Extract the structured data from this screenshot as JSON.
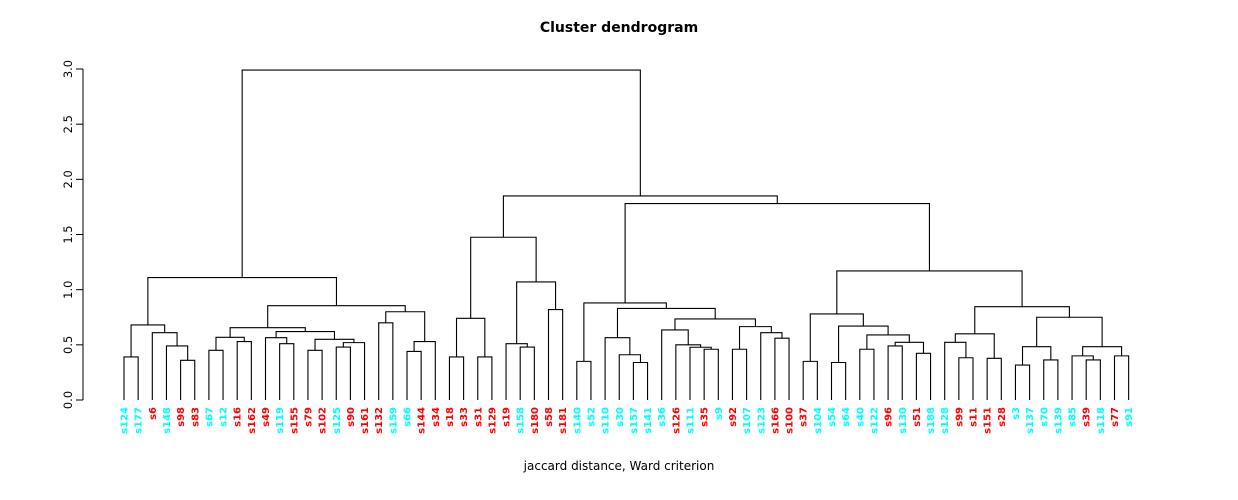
{
  "title": "Cluster dendrogram",
  "xlabel": "jaccard distance, Ward criterion",
  "colors": {
    "cluster_cyan": "#00FFFF",
    "cluster_red": "#FF0000",
    "line": "#000000",
    "background": "#FFFFFF"
  },
  "chart_data": {
    "type": "dendrogram",
    "title": "Cluster dendrogram",
    "xlabel": "jaccard distance, Ward criterion",
    "ylabel": "",
    "ylim": [
      0,
      3
    ],
    "yticks": [
      "0.0",
      "0.5",
      "1.0",
      "1.5",
      "2.0",
      "2.5",
      "3.0"
    ],
    "grid": false,
    "leaf_count": 72,
    "leaves": [
      [
        "s124",
        "c"
      ],
      [
        "s177",
        "c"
      ],
      [
        "s6",
        "r"
      ],
      [
        "s148",
        "c"
      ],
      [
        "s98",
        "r"
      ],
      [
        "s83",
        "r"
      ],
      [
        "s67",
        "c"
      ],
      [
        "s12",
        "c"
      ],
      [
        "s16",
        "r"
      ],
      [
        "s162",
        "r"
      ],
      [
        "s49",
        "r"
      ],
      [
        "s119",
        "c"
      ],
      [
        "s155",
        "r"
      ],
      [
        "s79",
        "r"
      ],
      [
        "s102",
        "r"
      ],
      [
        "s125",
        "c"
      ],
      [
        "s90",
        "r"
      ],
      [
        "s161",
        "r"
      ],
      [
        "s132",
        "r"
      ],
      [
        "s159",
        "c"
      ],
      [
        "s66",
        "c"
      ],
      [
        "s144",
        "r"
      ],
      [
        "s34",
        "r"
      ],
      [
        "s18",
        "r"
      ],
      [
        "s33",
        "r"
      ],
      [
        "s31",
        "r"
      ],
      [
        "s129",
        "r"
      ],
      [
        "s19",
        "r"
      ],
      [
        "s158",
        "c"
      ],
      [
        "s180",
        "r"
      ],
      [
        "s58",
        "r"
      ],
      [
        "s181",
        "r"
      ],
      [
        "s140",
        "c"
      ],
      [
        "s52",
        "c"
      ],
      [
        "s110",
        "c"
      ],
      [
        "s30",
        "c"
      ],
      [
        "s157",
        "c"
      ],
      [
        "s141",
        "c"
      ],
      [
        "s36",
        "c"
      ],
      [
        "s126",
        "r"
      ],
      [
        "s111",
        "c"
      ],
      [
        "s35",
        "r"
      ],
      [
        "s9",
        "c"
      ],
      [
        "s92",
        "r"
      ],
      [
        "s107",
        "c"
      ],
      [
        "s123",
        "c"
      ],
      [
        "s166",
        "r"
      ],
      [
        "s100",
        "r"
      ],
      [
        "s37",
        "r"
      ],
      [
        "s104",
        "c"
      ],
      [
        "s54",
        "c"
      ],
      [
        "s64",
        "c"
      ],
      [
        "s40",
        "c"
      ],
      [
        "s122",
        "c"
      ],
      [
        "s96",
        "r"
      ],
      [
        "s130",
        "c"
      ],
      [
        "s51",
        "r"
      ],
      [
        "s188",
        "c"
      ],
      [
        "s128",
        "c"
      ],
      [
        "s99",
        "r"
      ],
      [
        "s11",
        "r"
      ],
      [
        "s151",
        "r"
      ],
      [
        "s28",
        "r"
      ],
      [
        "s3",
        "c"
      ],
      [
        "s137",
        "c"
      ],
      [
        "s70",
        "c"
      ],
      [
        "s139",
        "c"
      ],
      [
        "s85",
        "c"
      ],
      [
        "s39",
        "r"
      ],
      [
        "s118",
        "c"
      ],
      [
        "s77",
        "r"
      ],
      [
        "s91",
        "c"
      ]
    ],
    "tree": [
      2.99,
      [
        1.11,
        [
          0.68,
          [
            0.39,
            "s124",
            "s177"
          ],
          [
            0.61,
            "s6",
            [
              0.49,
              "s148",
              [
                0.36,
                "s98",
                "s83"
              ]
            ]
          ]
        ],
        [
          0.855,
          [
            0.655,
            [
              0.568,
              [
                0.45,
                "s67",
                "s12"
              ],
              [
                0.53,
                "s16",
                "s162"
              ]
            ],
            [
              0.62,
              [
                0.565,
                "s49",
                [
                  0.51,
                  "s119",
                  "s155"
                ]
              ],
              [
                0.55,
                [
                  0.45,
                  "s79",
                  "s102"
                ],
                [
                  0.52,
                  [
                    0.48,
                    "s125",
                    "s90"
                  ],
                  "s161"
                ]
              ]
            ]
          ],
          [
            0.8,
            [
              0.7,
              "s132",
              "s159"
            ],
            [
              0.53,
              [
                0.44,
                "s66",
                "s144"
              ],
              "s34"
            ]
          ]
        ]
      ],
      [
        1.85,
        [
          1.475,
          [
            0.74,
            [
              0.39,
              "s18",
              "s33"
            ],
            [
              0.39,
              "s31",
              "s129"
            ]
          ],
          [
            1.07,
            [
              0.51,
              "s19",
              [
                0.48,
                "s158",
                "s180"
              ]
            ],
            [
              0.82,
              "s58",
              "s181"
            ]
          ]
        ],
        [
          1.78,
          [
            0.88,
            [
              0.35,
              "s140",
              "s52"
            ],
            [
              0.83,
              [
                0.565,
                "s110",
                [
                  0.41,
                  "s30",
                  [
                    0.34,
                    "s157",
                    "s141"
                  ]
                ]
              ],
              [
                0.735,
                [
                  0.635,
                  "s36",
                  [
                    0.5,
                    "s126",
                    [
                      0.478,
                      "s111",
                      [
                        0.46,
                        "s35",
                        "s9"
                      ]
                    ]
                  ]
                ],
                [
                  0.665,
                  [
                    0.46,
                    "s92",
                    "s107"
                  ],
                  [
                    0.61,
                    "s123",
                    [
                      0.56,
                      "s166",
                      "s100"
                    ]
                  ]
                ]
              ]
            ]
          ],
          [
            1.17,
            [
              0.78,
              [
                0.35,
                "s37",
                "s104"
              ],
              [
                0.67,
                [
                  0.34,
                  "s54",
                  "s64"
                ],
                [
                  0.59,
                  [
                    0.46,
                    "s40",
                    "s122"
                  ],
                  [
                    0.523,
                    [
                      0.49,
                      "s96",
                      "s130"
                    ],
                    [
                      0.423,
                      "s51",
                      "s188"
                    ]
                  ]
                ]
              ]
            ],
            [
              0.846,
              [
                0.6,
                [
                  0.523,
                  "s128",
                  [
                    0.383,
                    "s99",
                    "s11"
                  ]
                ],
                [
                  0.378,
                  "s151",
                  "s28"
                ]
              ],
              [
                0.75,
                [
                  0.483,
                  [
                    0.317,
                    "s3",
                    "s137"
                  ],
                  [
                    0.363,
                    "s70",
                    "s139"
                  ]
                ],
                [
                  0.483,
                  [
                    0.4,
                    "s85",
                    [
                      0.363,
                      "s39",
                      "s118"
                    ]
                  ],
                  [
                    0.4,
                    "s77",
                    "s91"
                  ]
                ]
              ]
            ]
          ]
        ]
      ]
    ]
  }
}
